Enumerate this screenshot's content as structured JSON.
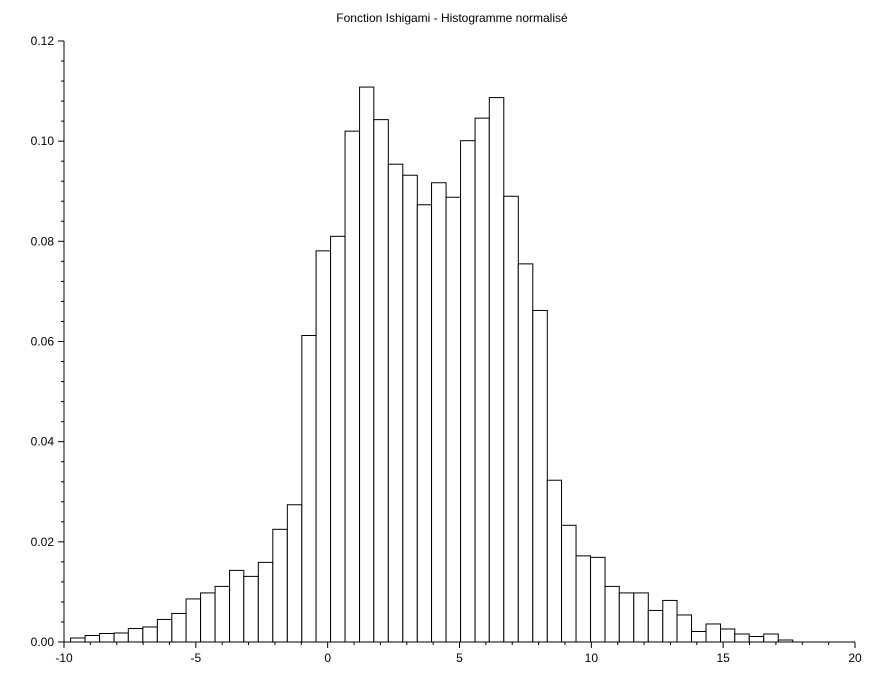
{
  "chart_data": {
    "type": "bar",
    "title": "Fonction Ishigami - Histogramme normalisé",
    "xlabel": "",
    "ylabel": "",
    "xlim": [
      -10,
      20
    ],
    "ylim": [
      0,
      0.12
    ],
    "grid": false,
    "legend": "none",
    "bar_fill": "#ffffff",
    "bar_stroke": "#000000",
    "x_ticks": [
      -10,
      -5,
      0,
      5,
      10,
      15,
      20
    ],
    "x_tick_labels": [
      "-10",
      "-5",
      "0",
      "5",
      "10",
      "15",
      "20"
    ],
    "y_ticks": [
      0,
      0.02,
      0.04,
      0.06,
      0.08,
      0.1,
      0.12
    ],
    "y_tick_labels": [
      "0.00",
      "0.02",
      "0.04",
      "0.06",
      "0.08",
      "0.10",
      "0.12"
    ],
    "bins": [
      {
        "x0": -9.75,
        "x1": -9.2,
        "value": 0.0008
      },
      {
        "x0": -9.2,
        "x1": -8.65,
        "value": 0.0013
      },
      {
        "x0": -8.65,
        "x1": -8.1,
        "value": 0.0017
      },
      {
        "x0": -8.1,
        "x1": -7.56,
        "value": 0.0018
      },
      {
        "x0": -7.56,
        "x1": -7.01,
        "value": 0.0027
      },
      {
        "x0": -7.01,
        "x1": -6.46,
        "value": 0.003
      },
      {
        "x0": -6.46,
        "x1": -5.91,
        "value": 0.0045
      },
      {
        "x0": -5.91,
        "x1": -5.37,
        "value": 0.0057
      },
      {
        "x0": -5.37,
        "x1": -4.82,
        "value": 0.0086
      },
      {
        "x0": -4.82,
        "x1": -4.27,
        "value": 0.0098
      },
      {
        "x0": -4.27,
        "x1": -3.72,
        "value": 0.0111
      },
      {
        "x0": -3.72,
        "x1": -3.18,
        "value": 0.0143
      },
      {
        "x0": -3.18,
        "x1": -2.63,
        "value": 0.0131
      },
      {
        "x0": -2.63,
        "x1": -2.08,
        "value": 0.0159
      },
      {
        "x0": -2.08,
        "x1": -1.53,
        "value": 0.0225
      },
      {
        "x0": -1.53,
        "x1": -0.98,
        "value": 0.0274
      },
      {
        "x0": -0.98,
        "x1": -0.44,
        "value": 0.0612
      },
      {
        "x0": -0.44,
        "x1": 0.11,
        "value": 0.0781
      },
      {
        "x0": 0.11,
        "x1": 0.66,
        "value": 0.081
      },
      {
        "x0": 0.66,
        "x1": 1.21,
        "value": 0.102
      },
      {
        "x0": 1.21,
        "x1": 1.75,
        "value": 0.1108
      },
      {
        "x0": 1.75,
        "x1": 2.3,
        "value": 0.1043
      },
      {
        "x0": 2.3,
        "x1": 2.85,
        "value": 0.0954
      },
      {
        "x0": 2.85,
        "x1": 3.4,
        "value": 0.0932
      },
      {
        "x0": 3.4,
        "x1": 3.94,
        "value": 0.0873
      },
      {
        "x0": 3.94,
        "x1": 4.49,
        "value": 0.0917
      },
      {
        "x0": 4.49,
        "x1": 5.04,
        "value": 0.0888
      },
      {
        "x0": 5.04,
        "x1": 5.59,
        "value": 0.1001
      },
      {
        "x0": 5.59,
        "x1": 6.13,
        "value": 0.1046
      },
      {
        "x0": 6.13,
        "x1": 6.68,
        "value": 0.1087
      },
      {
        "x0": 6.68,
        "x1": 7.23,
        "value": 0.089
      },
      {
        "x0": 7.23,
        "x1": 7.78,
        "value": 0.0755
      },
      {
        "x0": 7.78,
        "x1": 8.33,
        "value": 0.0662
      },
      {
        "x0": 8.33,
        "x1": 8.87,
        "value": 0.0323
      },
      {
        "x0": 8.87,
        "x1": 9.42,
        "value": 0.0233
      },
      {
        "x0": 9.42,
        "x1": 9.97,
        "value": 0.0172
      },
      {
        "x0": 9.97,
        "x1": 10.52,
        "value": 0.0169
      },
      {
        "x0": 10.52,
        "x1": 11.06,
        "value": 0.0111
      },
      {
        "x0": 11.06,
        "x1": 11.61,
        "value": 0.0098
      },
      {
        "x0": 11.61,
        "x1": 12.16,
        "value": 0.0098
      },
      {
        "x0": 12.16,
        "x1": 12.71,
        "value": 0.0063
      },
      {
        "x0": 12.71,
        "x1": 13.25,
        "value": 0.0083
      },
      {
        "x0": 13.25,
        "x1": 13.8,
        "value": 0.0054
      },
      {
        "x0": 13.8,
        "x1": 14.35,
        "value": 0.0021
      },
      {
        "x0": 14.35,
        "x1": 14.9,
        "value": 0.0036
      },
      {
        "x0": 14.9,
        "x1": 15.44,
        "value": 0.0026
      },
      {
        "x0": 15.44,
        "x1": 15.99,
        "value": 0.0016
      },
      {
        "x0": 15.99,
        "x1": 16.54,
        "value": 0.0011
      },
      {
        "x0": 16.54,
        "x1": 17.09,
        "value": 0.0016
      },
      {
        "x0": 17.09,
        "x1": 17.64,
        "value": 0.0004
      }
    ]
  }
}
